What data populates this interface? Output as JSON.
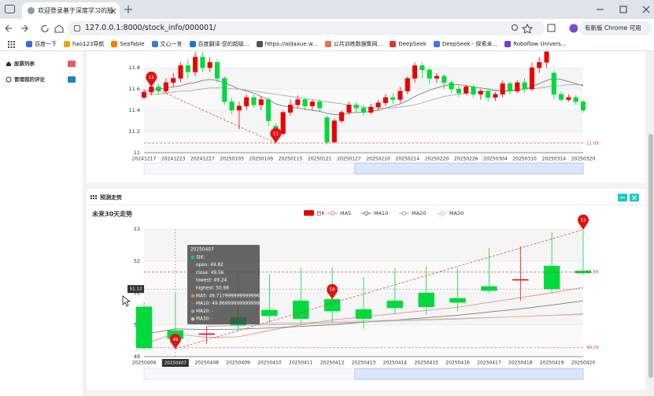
{
  "browser": {
    "tab_title": "欢迎登录基于深度学习的股票...",
    "url": "127.0.0.1:8000/stock_info/000001/",
    "update_button": "有新版 Chrome 可用",
    "bookmarks": [
      "百度一下",
      "hao123导航",
      "SeaTable",
      "文心一言",
      "百度翻译-您的超级...",
      "https://aidaxue.w...",
      "公共训练数据集网...",
      "DeepSeek",
      "DeepSeek - 探索未...",
      "Roboflow Univers..."
    ]
  },
  "sidebar": {
    "items": [
      "股票列表",
      "管理我的评论"
    ]
  },
  "history_chart": {
    "type": "candlestick",
    "up_color": "#ec0000",
    "down_color": "#00da3c",
    "categories": [
      "20241217",
      null,
      null,
      null,
      "20241223",
      null,
      null,
      null,
      "20241227",
      null,
      null,
      null,
      "20250103",
      null,
      null,
      null,
      "20250109",
      null,
      null,
      null,
      "20250115",
      null,
      null,
      null,
      "20250121",
      null,
      null,
      null,
      "20250127",
      null,
      null,
      null,
      "20250210",
      null,
      null,
      null,
      "20250214",
      null,
      null,
      null,
      "20250220",
      null,
      null,
      null,
      "20250226",
      null,
      null,
      null,
      "20250304",
      null,
      null,
      null,
      "20250310",
      null,
      null,
      null,
      "20250314",
      null,
      null,
      null,
      "20250320"
    ],
    "candles": [
      [
        11.52,
        11.57,
        11.5,
        11.6
      ],
      [
        11.57,
        11.62,
        11.54,
        11.66
      ],
      [
        11.62,
        11.58,
        11.55,
        11.65
      ],
      [
        11.58,
        11.66,
        11.56,
        11.7
      ],
      [
        11.66,
        11.7,
        11.62,
        11.75
      ],
      [
        11.7,
        11.82,
        11.66,
        11.85
      ],
      [
        11.82,
        11.76,
        11.7,
        11.88
      ],
      [
        11.76,
        11.9,
        11.72,
        11.95
      ],
      [
        11.9,
        11.8,
        11.76,
        11.95
      ],
      [
        11.8,
        11.85,
        11.76,
        11.9
      ],
      [
        11.85,
        11.7,
        11.66,
        11.88
      ],
      [
        11.7,
        11.48,
        11.45,
        11.72
      ],
      [
        11.48,
        11.4,
        11.36,
        11.52
      ],
      [
        11.4,
        11.44,
        11.22,
        11.48
      ],
      [
        11.44,
        11.52,
        11.4,
        11.55
      ],
      [
        11.52,
        11.45,
        11.42,
        11.55
      ],
      [
        11.45,
        11.5,
        11.4,
        11.53
      ],
      [
        11.5,
        11.3,
        11.25,
        11.52
      ],
      [
        11.25,
        11.18,
        11.09,
        11.28
      ],
      [
        11.18,
        11.38,
        11.16,
        11.4
      ],
      [
        11.38,
        11.45,
        11.35,
        11.5
      ],
      [
        11.45,
        11.5,
        11.42,
        11.54
      ],
      [
        11.5,
        11.44,
        11.4,
        11.52
      ],
      [
        11.44,
        11.48,
        11.4,
        11.5
      ],
      [
        11.48,
        11.42,
        11.38,
        11.5
      ],
      [
        11.33,
        11.1,
        11.08,
        11.35
      ],
      [
        11.1,
        11.3,
        11.1,
        11.32
      ],
      [
        11.3,
        11.38,
        11.28,
        11.4
      ],
      [
        11.38,
        11.45,
        11.36,
        11.48
      ],
      [
        11.45,
        11.42,
        11.38,
        11.48
      ],
      [
        11.42,
        11.38,
        11.35,
        11.45
      ],
      [
        11.38,
        11.43,
        11.36,
        11.46
      ],
      [
        11.43,
        11.47,
        11.4,
        11.5
      ],
      [
        11.47,
        11.52,
        11.44,
        11.55
      ],
      [
        11.52,
        11.5,
        11.46,
        11.56
      ],
      [
        11.5,
        11.58,
        11.47,
        11.62
      ],
      [
        11.58,
        11.7,
        11.55,
        11.72
      ],
      [
        11.7,
        11.82,
        11.66,
        11.85
      ],
      [
        11.82,
        11.78,
        11.7,
        11.85
      ],
      [
        11.78,
        11.7,
        11.65,
        11.8
      ],
      [
        11.7,
        11.72,
        11.66,
        11.75
      ],
      [
        11.72,
        11.66,
        11.6,
        11.74
      ],
      [
        11.66,
        11.6,
        11.56,
        11.68
      ],
      [
        11.6,
        11.56,
        11.52,
        11.63
      ],
      [
        11.56,
        11.62,
        11.54,
        11.64
      ],
      [
        11.62,
        11.55,
        11.52,
        11.64
      ],
      [
        11.55,
        11.58,
        11.5,
        11.6
      ],
      [
        11.58,
        11.52,
        11.48,
        11.6
      ],
      [
        11.52,
        11.55,
        11.49,
        11.57
      ],
      [
        11.55,
        11.65,
        11.52,
        11.68
      ],
      [
        11.65,
        11.58,
        11.55,
        11.67
      ],
      [
        11.58,
        11.66,
        11.56,
        11.68
      ],
      [
        11.66,
        11.6,
        11.56,
        11.7
      ],
      [
        11.6,
        11.8,
        11.58,
        11.85
      ],
      [
        11.8,
        11.85,
        11.75,
        11.9
      ],
      [
        11.85,
        11.95,
        11.8,
        11.98
      ],
      [
        11.75,
        11.55,
        11.5,
        11.77
      ],
      [
        11.55,
        11.5,
        11.48,
        11.58
      ],
      [
        11.5,
        11.52,
        11.48,
        11.55
      ],
      [
        11.52,
        11.48,
        11.45,
        11.54
      ],
      [
        11.48,
        11.4,
        11.38,
        11.5
      ]
    ],
    "series": [
      {
        "color": "#6e7079",
        "values": [
          11.58,
          11.59,
          11.6,
          11.61,
          11.62,
          11.63,
          11.65,
          11.66,
          11.68,
          11.69,
          11.68,
          11.66,
          11.63,
          11.6,
          11.58,
          11.56,
          11.53,
          11.5,
          11.46,
          11.44,
          11.43,
          11.42,
          11.41,
          11.4,
          11.39,
          11.37,
          11.36,
          11.36,
          11.37,
          11.38,
          11.38,
          11.39,
          11.4,
          11.42,
          11.44,
          11.46,
          11.49,
          11.53,
          11.56,
          11.59,
          11.61,
          11.63,
          11.64,
          11.64,
          11.63,
          11.62,
          11.61,
          11.6,
          11.59,
          11.58,
          11.58,
          11.59,
          11.6,
          11.62,
          11.65,
          11.68,
          11.7,
          11.69,
          11.67,
          11.65,
          11.63
        ]
      },
      {
        "color": "#91a7b5",
        "values": [
          11.54,
          11.55,
          11.55,
          11.56,
          11.57,
          11.58,
          11.58,
          11.59,
          11.6,
          11.61,
          11.61,
          11.61,
          11.6,
          11.6,
          11.59,
          11.58,
          11.57,
          11.56,
          11.55,
          11.54,
          11.53,
          11.52,
          11.51,
          11.5,
          11.49,
          11.48,
          11.47,
          11.46,
          11.45,
          11.44,
          11.43,
          11.42,
          11.42,
          11.42,
          11.42,
          11.43,
          11.44,
          11.45,
          11.47,
          11.49,
          11.51,
          11.53,
          11.54,
          11.55,
          11.56,
          11.57,
          11.57,
          11.58,
          11.58,
          11.58,
          11.59,
          11.59,
          11.6,
          11.6,
          11.61,
          11.62,
          11.63,
          11.63,
          11.64,
          11.64,
          11.64
        ]
      }
    ],
    "ylim": [
      11,
      12
    ],
    "yticks": [
      11,
      11.2,
      11.4,
      11.6,
      11.8
    ],
    "mark_points": [
      {
        "value": 11.62,
        "label": "12"
      },
      {
        "value": 11.09,
        "label": "11"
      }
    ],
    "mark_lines": [
      {
        "value": 11.09,
        "label": "11.09"
      }
    ],
    "trend_line": true
  },
  "forecast_panel": {
    "title": "预测走势",
    "chart": {
      "type": "candlestick",
      "title": "未来30天走势",
      "candle_name": "日K",
      "up_color": "#ec0000",
      "down_color": "#00da3c",
      "categories": [
        "20250406",
        "20250407",
        "20250408",
        "20250409",
        "20250410",
        "20250411",
        "20250412",
        "20250413",
        "20250414",
        "20250415",
        "20250416",
        "20250417",
        "20250418",
        "20250419",
        "20250420"
      ],
      "candles": [
        [
          50.56,
          49.27,
          49.2,
          50.7
        ],
        [
          49.82,
          49.56,
          49.24,
          50.98
        ],
        [
          49.7,
          49.72,
          49.4,
          49.95
        ],
        [
          50.23,
          49.99,
          49.81,
          51.6
        ],
        [
          50.46,
          50.28,
          50.06,
          51.59
        ],
        [
          50.75,
          50.19,
          50.06,
          51.79
        ],
        [
          50.8,
          50.43,
          50.06,
          51.79
        ],
        [
          50.48,
          50.19,
          49.86,
          51.49
        ],
        [
          50.75,
          50.53,
          50.31,
          51.78
        ],
        [
          51.0,
          50.56,
          50.31,
          51.84
        ],
        [
          50.83,
          50.7,
          50.43,
          51.77
        ],
        [
          51.2,
          51.07,
          50.98,
          52.41
        ],
        [
          51.4,
          51.42,
          50.75,
          52.46
        ],
        [
          51.84,
          51.12,
          50.99,
          52.9
        ],
        [
          51.69,
          51.62,
          51.57,
          52.98
        ]
      ],
      "series": [
        {
          "name": "MA5",
          "color": "#e8836b",
          "values": [
            49.4,
            49.717999999999996,
            49.6,
            49.62,
            49.82,
            50.0,
            50.15,
            50.25,
            50.35,
            50.45,
            50.55,
            50.7,
            50.85,
            51.0,
            51.17
          ]
        },
        {
          "name": "MA10",
          "color": "#6e7079",
          "values": [
            49.7,
            49.86999999999999,
            49.85,
            49.86,
            49.9,
            49.95,
            50.0,
            50.08,
            50.15,
            50.22,
            50.3,
            50.4,
            50.5,
            50.62,
            50.75
          ]
        },
        {
          "name": "MA20",
          "color": "#91a7b5",
          "values": [
            null,
            null,
            49.95,
            49.97,
            50.0,
            50.03,
            50.06,
            50.09,
            50.12,
            50.15,
            50.18,
            50.22,
            50.26,
            50.3,
            50.34
          ]
        },
        {
          "name": "MA30",
          "color": "#f4b59a",
          "values": [
            null,
            null,
            50.0,
            50.02,
            50.05,
            50.07,
            50.1,
            50.12,
            50.15,
            50.17,
            50.2,
            50.23,
            50.26,
            50.29,
            50.32
          ]
        }
      ],
      "ylim": [
        49,
        53
      ],
      "yticks": [
        49,
        50,
        51,
        52,
        53
      ],
      "mark_points": [
        {
          "value": 52.98,
          "label": "53"
        },
        {
          "value": 49.24,
          "label": "49"
        },
        {
          "value": 50.8,
          "label": "50"
        }
      ],
      "mark_lines": [
        {
          "value": 51.65,
          "label": "51.65"
        },
        {
          "value": 49.29,
          "label": "49.29"
        }
      ],
      "trend_line": true,
      "pointer": {
        "x": "20250407",
        "y": 51.12
      },
      "tooltip": [
        "20250407",
        "日K:",
        "open: 49.82",
        "close: 49.56",
        "lowest: 49.24",
        "highest: 50.98",
        "MA5: 49.717999999999996",
        "MA10: 49.86999999999999",
        "MA20: -",
        "MA30: -"
      ]
    }
  }
}
